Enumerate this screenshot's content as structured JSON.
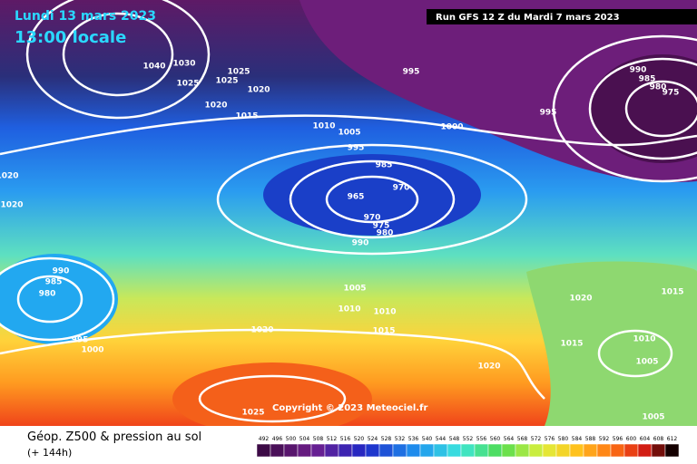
{
  "header": {
    "date": "Lundi 13 mars 2023",
    "time": "13:00 locale",
    "run": "Run GFS 12 Z du Mardi 7 mars 2023"
  },
  "copyright": "Copyright © 2023 Meteociel.fr",
  "footer": {
    "title": "Géop. Z500 & pression au sol",
    "lead": "(+ 144h)"
  },
  "scale": [
    492,
    496,
    500,
    504,
    508,
    512,
    516,
    520,
    524,
    528,
    532,
    536,
    540,
    544,
    548,
    552,
    556,
    560,
    564,
    568,
    572,
    576,
    580,
    584,
    588,
    592,
    596,
    600,
    604,
    608,
    612
  ],
  "isobars": [
    1040,
    1030,
    1025,
    1025,
    1025,
    1020,
    1020,
    1015,
    1010,
    1005,
    995,
    995,
    1000,
    995,
    990,
    985,
    980,
    975,
    985,
    965,
    970,
    970,
    975,
    980,
    990,
    1020,
    1020,
    990,
    985,
    980,
    995,
    1000,
    1005,
    1010,
    1010,
    1015,
    1020,
    1020,
    1020,
    1015,
    1015,
    1010,
    1005,
    1005,
    1025
  ]
}
